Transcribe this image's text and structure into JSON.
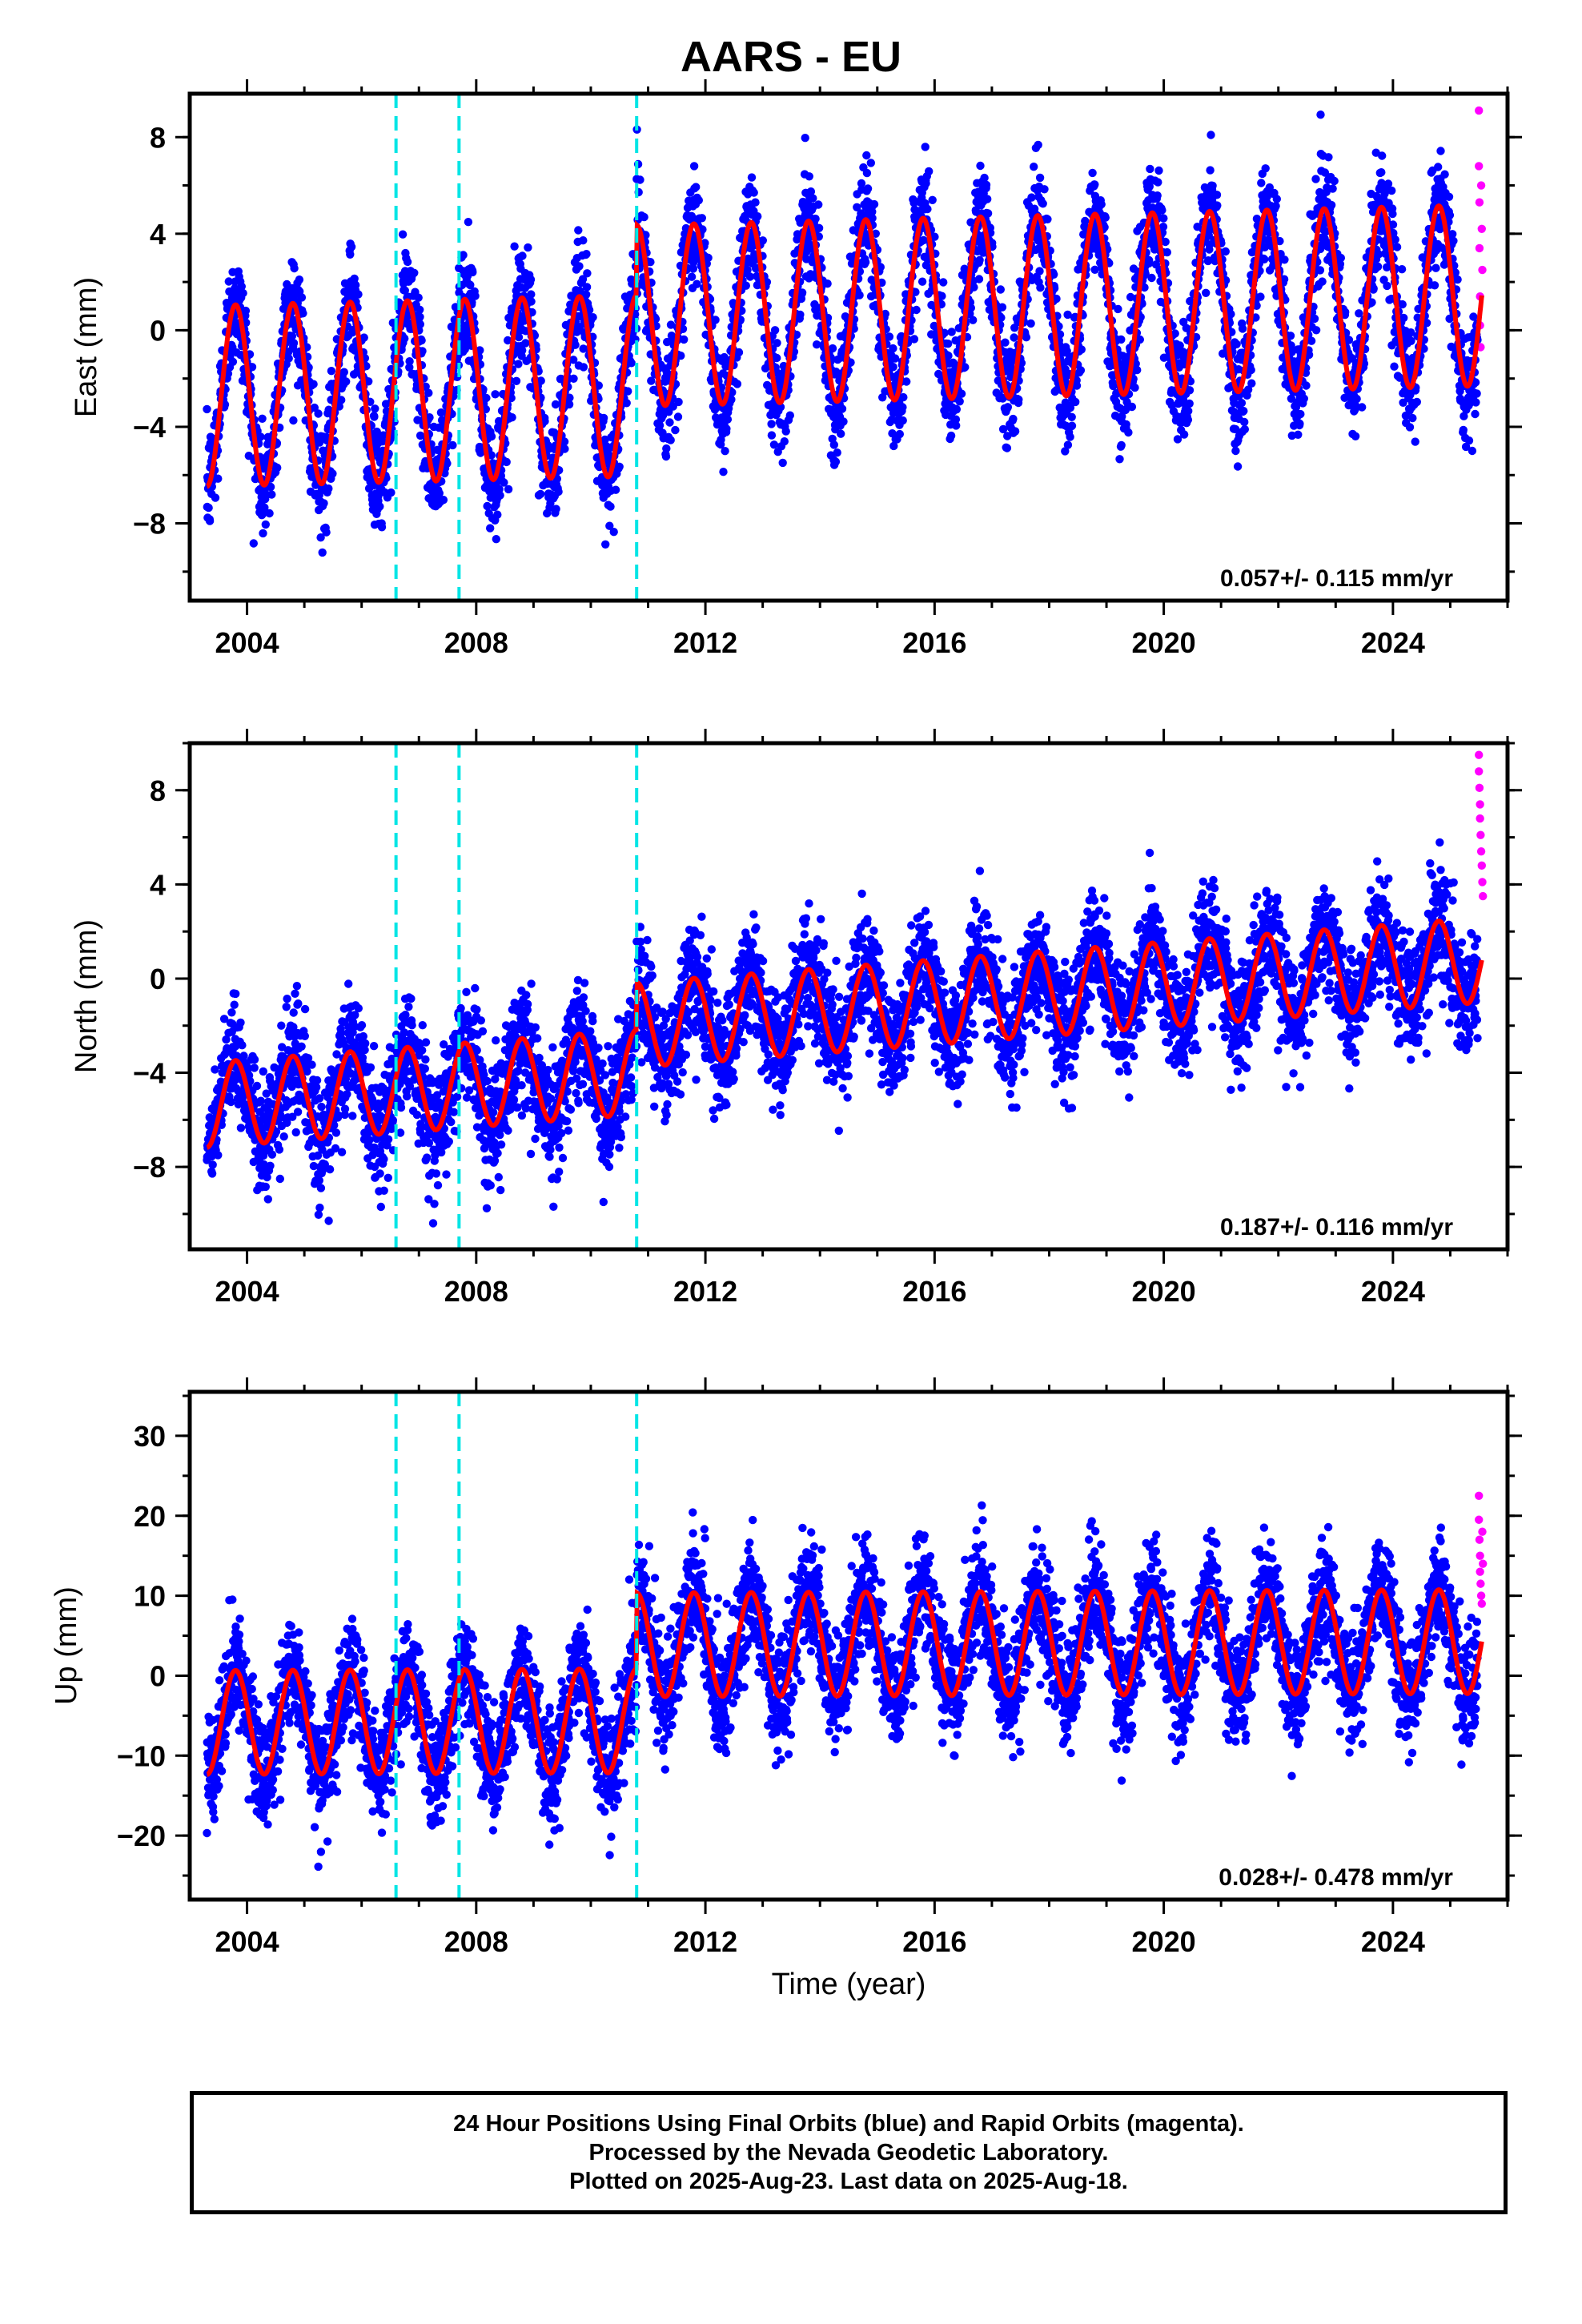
{
  "title": "AARS - EU",
  "caption": {
    "line1": "24 Hour Positions Using Final Orbits (blue) and Rapid Orbits (magenta).",
    "line2": "Processed by the Nevada Geodetic Laboratory.",
    "line3": "Plotted on 2025-Aug-23. Last data on 2025-Aug-18."
  },
  "colors": {
    "final_orbits": "#0000ff",
    "rapid_orbits": "#ff00ff",
    "model_fit": "#ff0000",
    "step_lines": "#00e5e5"
  },
  "chart_data": [
    {
      "type": "scatter",
      "ylabel": "East (mm)",
      "xlim": [
        2003.0,
        2026.0
      ],
      "ylim": [
        -11.2,
        9.8
      ],
      "x_ticks": [
        2004,
        2008,
        2012,
        2016,
        2020,
        2024
      ],
      "y_ticks": [
        -8,
        -4,
        0,
        4,
        8
      ],
      "y_tick_labels": [
        "−8",
        "−4",
        "0",
        "4",
        "8"
      ],
      "grid": false,
      "steps": [
        2006.6,
        2007.7,
        2010.8
      ],
      "annotation": "0.057+/- 0.115 mm/yr",
      "model": {
        "pre_offset": -2.0,
        "post_offset": 0.9,
        "amplitude": 3.75,
        "phase": 0.55,
        "rate": 0.057
      },
      "rapid": [
        [
          2025.5,
          9.1
        ],
        [
          2025.5,
          6.8
        ],
        [
          2025.51,
          5.3
        ],
        [
          2025.51,
          3.4
        ],
        [
          2025.52,
          1.4
        ],
        [
          2025.52,
          0.2
        ],
        [
          2025.53,
          -0.7
        ],
        [
          2025.54,
          6.0
        ],
        [
          2025.55,
          4.2
        ],
        [
          2025.56,
          2.5
        ]
      ]
    },
    {
      "type": "scatter",
      "ylabel": "North (mm)",
      "xlim": [
        2003.0,
        2026.0
      ],
      "ylim": [
        -11.5,
        10.0
      ],
      "x_ticks": [
        2004,
        2008,
        2012,
        2016,
        2020,
        2024
      ],
      "y_ticks": [
        -8,
        -4,
        0,
        4,
        8
      ],
      "y_tick_labels": [
        "−8",
        "−4",
        "0",
        "4",
        "8"
      ],
      "grid": false,
      "steps": [
        2006.6,
        2007.7,
        2010.8
      ],
      "annotation": "0.187+/- 0.116 mm/yr",
      "model": {
        "pre_offset": -3.0,
        "post_offset": -1.0,
        "amplitude": 1.8,
        "phase": 0.55,
        "rate": 0.187
      },
      "rapid": [
        [
          2025.5,
          9.5
        ],
        [
          2025.5,
          8.8
        ],
        [
          2025.51,
          8.1
        ],
        [
          2025.52,
          7.4
        ],
        [
          2025.52,
          6.8
        ],
        [
          2025.53,
          6.1
        ],
        [
          2025.54,
          5.4
        ],
        [
          2025.55,
          4.8
        ],
        [
          2025.56,
          4.1
        ],
        [
          2025.57,
          3.5
        ]
      ]
    },
    {
      "type": "scatter",
      "ylabel": "Up (mm)",
      "xlim": [
        2003.0,
        2026.0
      ],
      "ylim": [
        -28.0,
        35.5
      ],
      "x_ticks": [
        2004,
        2008,
        2012,
        2016,
        2020,
        2024
      ],
      "y_ticks": [
        -20,
        -10,
        0,
        10,
        20,
        30
      ],
      "y_tick_labels": [
        "−20",
        "−10",
        "0",
        "10",
        "20",
        "30"
      ],
      "grid": false,
      "steps": [
        2006.6,
        2007.7,
        2010.8
      ],
      "annotation": "0.028+/- 0.478 mm/yr",
      "xlabel": "Time (year)",
      "model": {
        "pre_offset": -5.5,
        "post_offset": 4.0,
        "amplitude": 6.5,
        "phase": 0.55,
        "rate": 0.028
      },
      "rapid": [
        [
          2025.5,
          22.5
        ],
        [
          2025.5,
          19.5
        ],
        [
          2025.51,
          17.0
        ],
        [
          2025.52,
          15.0
        ],
        [
          2025.52,
          13.0
        ],
        [
          2025.53,
          11.5
        ],
        [
          2025.54,
          10.0
        ],
        [
          2025.55,
          9.0
        ],
        [
          2025.56,
          18.0
        ],
        [
          2025.57,
          14.0
        ]
      ]
    }
  ]
}
